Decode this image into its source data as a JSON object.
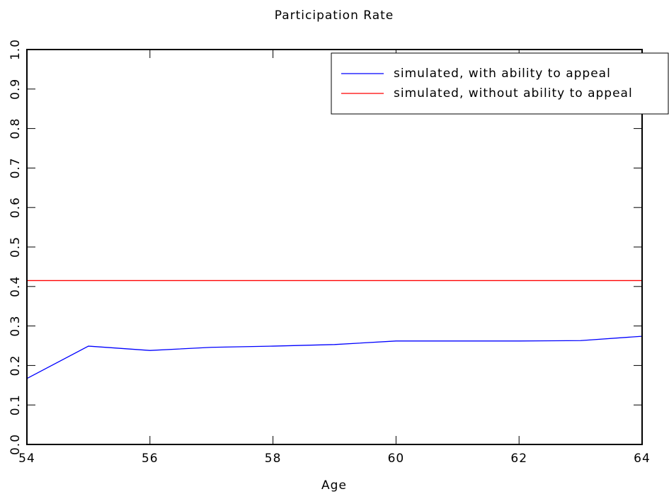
{
  "chart_data": {
    "type": "line",
    "title": "Participation Rate",
    "x_label": "Age",
    "x": [
      54,
      55,
      56,
      57,
      58,
      59,
      60,
      61,
      62,
      63,
      64
    ],
    "series": [
      {
        "name": "simulated, with ability to appeal",
        "color": "#0000ff",
        "values": [
          0.167,
          0.249,
          0.238,
          0.246,
          0.249,
          0.253,
          0.262,
          0.262,
          0.262,
          0.263,
          0.274
        ]
      },
      {
        "name": "simulated, without ability to appeal",
        "color": "#ff0000",
        "values": [
          0.415,
          0.415,
          0.415,
          0.415,
          0.415,
          0.415,
          0.415,
          0.415,
          0.415,
          0.415,
          0.415
        ]
      }
    ],
    "xlim": [
      54,
      64
    ],
    "xticks": [
      54,
      56,
      58,
      60,
      62,
      64
    ],
    "ylim": [
      0,
      1
    ],
    "yticks": [
      {
        "value": 0,
        "label": "0.0"
      },
      0.1,
      0.2,
      0.3,
      0.4,
      0.5,
      0.6,
      0.7,
      0.8,
      0.9,
      {
        "value": 1,
        "label": "1.0"
      }
    ],
    "legend": "upper right"
  }
}
